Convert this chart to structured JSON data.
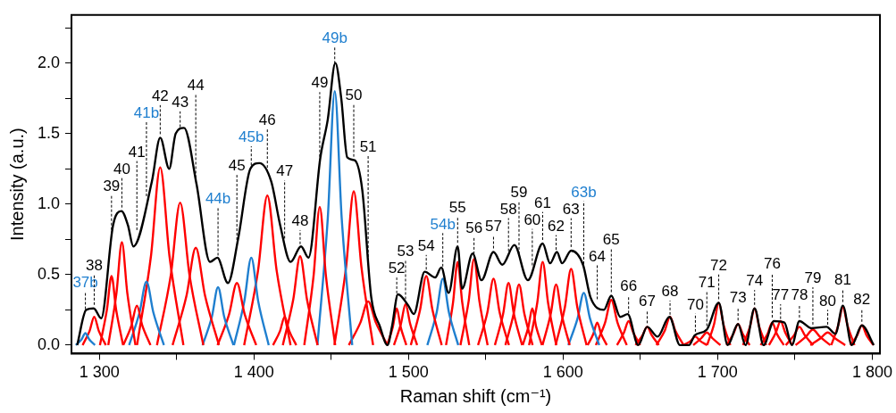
{
  "chart_data": {
    "type": "line",
    "xlabel": "Raman shift (cm⁻¹)",
    "ylabel": "Intensity (a.u.)",
    "marker": "none",
    "xlim": [
      1282,
      1805
    ],
    "ylim": [
      -0.06,
      2.34
    ],
    "xticks": [
      {
        "value": 1300,
        "label": "1 300"
      },
      {
        "value": 1350,
        "label": null
      },
      {
        "value": 1400,
        "label": "1 400"
      },
      {
        "value": 1450,
        "label": null
      },
      {
        "value": 1500,
        "label": "1 500"
      },
      {
        "value": 1550,
        "label": null
      },
      {
        "value": 1600,
        "label": "1 600"
      },
      {
        "value": 1650,
        "label": null
      },
      {
        "value": 1700,
        "label": "1 700"
      },
      {
        "value": 1750,
        "label": null
      },
      {
        "value": 1800,
        "label": "1 800"
      }
    ],
    "yticks": [
      {
        "value": 0,
        "label": "0.0"
      },
      {
        "value": 0.25,
        "label": null
      },
      {
        "value": 0.5,
        "label": "0.5"
      },
      {
        "value": 0.75,
        "label": null
      },
      {
        "value": 1,
        "label": "1.0"
      },
      {
        "value": 1.25,
        "label": null
      },
      {
        "value": 1.5,
        "label": "1.5"
      },
      {
        "value": 1.75,
        "label": null
      },
      {
        "value": 2,
        "label": "2.0"
      },
      {
        "value": 2.25,
        "label": null
      }
    ],
    "annotations": [
      {
        "text": "37b",
        "x": 1291,
        "y": 0.23
      },
      {
        "text": "38",
        "x": 1296.7,
        "y": 0.26
      },
      {
        "text": "39",
        "x": 1307.9,
        "y": 0.76
      },
      {
        "text": "40",
        "x": 1314.6,
        "y": 0.95
      },
      {
        "text": "41",
        "x": 1324.3,
        "y": 0.79
      },
      {
        "text": "41b",
        "x": 1330.5,
        "y": 1.03
      },
      {
        "text": "42",
        "x": 1339.4,
        "y": 1.47
      },
      {
        "text": "43",
        "x": 1352.3,
        "y": 1.52
      },
      {
        "text": "44",
        "x": 1362.4,
        "y": 1.16
      },
      {
        "text": "44b",
        "x": 1376.8,
        "y": 0.61
      },
      {
        "text": "45",
        "x": 1389,
        "y": 0.72
      },
      {
        "text": "45b",
        "x": 1398.3,
        "y": 1.25
      },
      {
        "text": "46",
        "x": 1408.7,
        "y": 1.2
      },
      {
        "text": "47",
        "x": 1419.9,
        "y": 0.73
      },
      {
        "text": "48",
        "x": 1429.9,
        "y": 0.69
      },
      {
        "text": "49",
        "x": 1442.6,
        "y": 1.31
      },
      {
        "text": "49b",
        "x": 1452.3,
        "y": 1.97
      },
      {
        "text": "50",
        "x": 1464.6,
        "y": 1.31
      },
      {
        "text": "51",
        "x": 1473.9,
        "y": 0.6
      },
      {
        "text": "52",
        "x": 1492.4,
        "y": 0.31
      },
      {
        "text": "53",
        "x": 1498.1,
        "y": 0.3
      },
      {
        "text": "54",
        "x": 1511.5,
        "y": 0.51
      },
      {
        "text": "54b",
        "x": 1522.2,
        "y": 0.5
      },
      {
        "text": "55",
        "x": 1531.8,
        "y": 0.7
      },
      {
        "text": "56",
        "x": 1542.4,
        "y": 0.62
      },
      {
        "text": "57",
        "x": 1555,
        "y": 0.66
      },
      {
        "text": "58",
        "x": 1564.7,
        "y": 0.64
      },
      {
        "text": "59",
        "x": 1571.5,
        "y": 0.62
      },
      {
        "text": "60",
        "x": 1580.1,
        "y": 0.54
      },
      {
        "text": "61",
        "x": 1586.8,
        "y": 0.72
      },
      {
        "text": "62",
        "x": 1595.5,
        "y": 0.65
      },
      {
        "text": "63",
        "x": 1605.2,
        "y": 0.67
      },
      {
        "text": "63b",
        "x": 1613.4,
        "y": 0.55
      },
      {
        "text": "64",
        "x": 1622.1,
        "y": 0.3
      },
      {
        "text": "65",
        "x": 1631.2,
        "y": 0.35
      },
      {
        "text": "66",
        "x": 1642.4,
        "y": 0.2
      },
      {
        "text": "67",
        "x": 1654.4,
        "y": 0.13
      },
      {
        "text": "68",
        "x": 1669.2,
        "y": 0.19
      },
      {
        "text": "70",
        "x": 1685.6,
        "y": 0.07
      },
      {
        "text": "71",
        "x": 1693,
        "y": 0.11
      },
      {
        "text": "72",
        "x": 1700.7,
        "y": 0.3
      },
      {
        "text": "73",
        "x": 1713.2,
        "y": 0.15
      },
      {
        "text": "74",
        "x": 1723.9,
        "y": 0.26
      },
      {
        "text": "76",
        "x": 1735.3,
        "y": 0.17
      },
      {
        "text": "77",
        "x": 1740.7,
        "y": 0.16
      },
      {
        "text": "78",
        "x": 1752.9,
        "y": 0.17
      },
      {
        "text": "79",
        "x": 1761.6,
        "y": 0.12
      },
      {
        "text": "80",
        "x": 1771.2,
        "y": 0.12
      },
      {
        "text": "81",
        "x": 1781,
        "y": 0.28
      },
      {
        "text": "82",
        "x": 1793.3,
        "y": 0.14
      }
    ],
    "series": [
      {
        "color": "#000000",
        "x": [
          1285.7,
          1291.5,
          1296.4,
          1301.2,
          1308.9,
          1314.3,
          1318.5,
          1322,
          1334,
          1339.4,
          1345.2,
          1349.4,
          1354.8,
          1362.9,
          1371.6,
          1376.4,
          1383.2,
          1389.9,
          1397.7,
          1403.5,
          1411.2,
          1417,
          1423.7,
          1430.5,
          1435.3,
          1443,
          1447.8,
          1452.7,
          1456.5,
          1460.4,
          1465.2,
          1470.1,
          1475.9,
          1481.6,
          1486.4,
          1489.3,
          1493.2,
          1499.9,
          1503.4,
          1510.5,
          1517.3,
          1521.2,
          1526,
          1531.8,
          1534.7,
          1541.5,
          1547.2,
          1555,
          1560.7,
          1568.5,
          1577.2,
          1586.8,
          1591.6,
          1596,
          1599.4,
          1605.2,
          1612.9,
          1617.7,
          1626.4,
          1631.2,
          1637,
          1641.8,
          1648.6,
          1654.4,
          1661.1,
          1668.8,
          1675.6,
          1681.4,
          1685.2,
          1693,
          1700.7,
          1706.5,
          1713.2,
          1718,
          1723.9,
          1729.7,
          1736.4,
          1743.2,
          1748,
          1752.9,
          1760.6,
          1770.4,
          1776.2,
          1781,
          1786.8,
          1793.3,
          1801
        ],
        "values": [
          0,
          0.25,
          0.26,
          0.19,
          0.85,
          0.95,
          0.85,
          0.7,
          1.16,
          1.47,
          1.25,
          1.5,
          1.54,
          1.14,
          0.59,
          0.62,
          0.44,
          0.76,
          1.25,
          1.29,
          1.16,
          0.85,
          0.59,
          0.7,
          0.62,
          1.33,
          1.6,
          2.0,
          1.75,
          1.33,
          1.31,
          1.1,
          0.34,
          0.13,
          0,
          0.13,
          0.36,
          0.28,
          0.22,
          0.52,
          0.48,
          0.55,
          0.37,
          0.7,
          0.4,
          0.65,
          0.46,
          0.66,
          0.57,
          0.71,
          0.46,
          0.72,
          0.58,
          0.66,
          0.58,
          0.67,
          0.57,
          0.34,
          0.25,
          0.35,
          0.2,
          0.22,
          0,
          0.13,
          0.06,
          0.2,
          0,
          0,
          0.07,
          0.11,
          0.3,
          0,
          0.15,
          0,
          0.26,
          0,
          0.17,
          0.16,
          0,
          0.17,
          0.12,
          0.13,
          0.08,
          0.28,
          0,
          0.14,
          0
        ]
      },
      {
        "color": "#1f7fcf",
        "x": [
          1284.8,
          1288.5,
          1291,
          1293.5,
          1297.2
        ],
        "values": [
          0,
          0.04,
          0.085,
          0.04,
          0
        ]
      },
      {
        "color": "#ff0000",
        "x": [
          1289.2,
          1293.7,
          1296.7,
          1299.7,
          1304.2
        ],
        "values": [
          0,
          0.1,
          0.2,
          0.1,
          0
        ]
      },
      {
        "color": "#ff0000",
        "x": [
          1300.4,
          1304.9,
          1307.9,
          1310.9,
          1315.4
        ],
        "values": [
          0,
          0.25,
          0.49,
          0.25,
          0
        ]
      },
      {
        "color": "#ff0000",
        "x": [
          1305.8,
          1311.1,
          1314.6,
          1318.1,
          1323.4
        ],
        "values": [
          0,
          0.37,
          0.73,
          0.37,
          0
        ]
      },
      {
        "color": "#ff0000",
        "x": [
          1315.5,
          1320.8,
          1324.3,
          1327.8,
          1333.1
        ],
        "values": [
          0,
          0.14,
          0.28,
          0.14,
          0
        ]
      },
      {
        "color": "#1f7fcf",
        "x": [
          1319.3,
          1326,
          1330.5,
          1335,
          1341.8
        ],
        "values": [
          0,
          0.23,
          0.45,
          0.23,
          0
        ]
      },
      {
        "color": "#ff0000",
        "x": [
          1324.4,
          1333.4,
          1339.4,
          1345.4,
          1354.4
        ],
        "values": [
          0,
          0.63,
          1.26,
          0.63,
          0
        ]
      },
      {
        "color": "#ff0000",
        "x": [
          1337.3,
          1346.3,
          1352.3,
          1358.3,
          1367.3
        ],
        "values": [
          0,
          0.5,
          1.01,
          0.5,
          0
        ]
      },
      {
        "color": "#ff0000",
        "x": [
          1347.4,
          1356.4,
          1362.4,
          1368.4,
          1377.4
        ],
        "values": [
          0,
          0.35,
          0.69,
          0.35,
          0
        ]
      },
      {
        "color": "#1f7fcf",
        "x": [
          1366.8,
          1372.8,
          1376.8,
          1380.8,
          1386.8
        ],
        "values": [
          0,
          0.2,
          0.41,
          0.2,
          0
        ]
      },
      {
        "color": "#ff0000",
        "x": [
          1376.5,
          1384,
          1389,
          1394,
          1401.5
        ],
        "values": [
          0,
          0.22,
          0.44,
          0.22,
          0
        ]
      },
      {
        "color": "#1f7fcf",
        "x": [
          1387.1,
          1393.8,
          1398.3,
          1402.8,
          1409.6
        ],
        "values": [
          0,
          0.31,
          0.62,
          0.31,
          0
        ]
      },
      {
        "color": "#ff0000",
        "x": [
          1393.7,
          1402.7,
          1408.7,
          1414.7,
          1423.7
        ],
        "values": [
          0,
          0.53,
          1.06,
          0.53,
          0
        ]
      },
      {
        "color": "#ff0000",
        "x": [
          1412.4,
          1416.9,
          1419.9,
          1422.9,
          1427.4
        ],
        "values": [
          0,
          0.1,
          0.2,
          0.1,
          0
        ]
      },
      {
        "color": "#ff0000",
        "x": [
          1418.7,
          1425.4,
          1429.9,
          1434.4,
          1441.2
        ],
        "values": [
          0,
          0.32,
          0.63,
          0.32,
          0
        ]
      },
      {
        "color": "#ff0000",
        "x": [
          1432.6,
          1438.6,
          1442.6,
          1446.6,
          1452.6
        ],
        "values": [
          0,
          0.49,
          0.98,
          0.49,
          0
        ]
      },
      {
        "color": "#1f7fcf",
        "x": [
          1441.1,
          1447.8,
          1452.3,
          1456.8,
          1463.6
        ],
        "values": [
          0,
          0.9,
          1.8,
          0.9,
          0
        ]
      },
      {
        "color": "#ff0000",
        "x": [
          1452.1,
          1459.6,
          1464.6,
          1469.6,
          1477.1
        ],
        "values": [
          0,
          0.55,
          1.09,
          0.55,
          0
        ]
      },
      {
        "color": "#ff0000",
        "x": [
          1461.4,
          1468.9,
          1473.9,
          1478.9,
          1486.4
        ],
        "values": [
          0,
          0.16,
          0.31,
          0.16,
          0
        ]
      },
      {
        "color": "#ff0000",
        "x": [
          1486.2,
          1489.9,
          1492.4,
          1494.9,
          1498.6
        ],
        "values": [
          0,
          0.13,
          0.26,
          0.13,
          0
        ]
      },
      {
        "color": "#ff0000",
        "x": [
          1490.6,
          1495.1,
          1498.1,
          1501.1,
          1505.6
        ],
        "values": [
          0,
          0.15,
          0.29,
          0.15,
          0
        ]
      },
      {
        "color": "#ff0000",
        "x": [
          1501.5,
          1507.5,
          1511.5,
          1515.5,
          1521.5
        ],
        "values": [
          0,
          0.25,
          0.49,
          0.25,
          0
        ]
      },
      {
        "color": "#1f7fcf",
        "x": [
          1512.2,
          1518.2,
          1522.2,
          1526.2,
          1532.2
        ],
        "values": [
          0,
          0.23,
          0.47,
          0.23,
          0
        ]
      },
      {
        "color": "#ff0000",
        "x": [
          1524.3,
          1528.8,
          1531.8,
          1534.8,
          1539.3
        ],
        "values": [
          0,
          0.3,
          0.59,
          0.3,
          0
        ]
      },
      {
        "color": "#ff0000",
        "x": [
          1533.6,
          1538.9,
          1542.4,
          1545.9,
          1551.2
        ],
        "values": [
          0,
          0.31,
          0.61,
          0.31,
          0
        ]
      },
      {
        "color": "#ff0000",
        "x": [
          1545,
          1551,
          1555,
          1559,
          1565
        ],
        "values": [
          0,
          0.23,
          0.47,
          0.23,
          0
        ]
      },
      {
        "color": "#ff0000",
        "x": [
          1555.9,
          1561.2,
          1564.7,
          1568.2,
          1573.5
        ],
        "values": [
          0,
          0.22,
          0.44,
          0.22,
          0
        ]
      },
      {
        "color": "#ff0000",
        "x": [
          1562.7,
          1568,
          1571.5,
          1575,
          1580.3
        ],
        "values": [
          0,
          0.22,
          0.43,
          0.22,
          0
        ]
      },
      {
        "color": "#ff0000",
        "x": [
          1573.9,
          1577.6,
          1580.1,
          1582.6,
          1586.3
        ],
        "values": [
          0,
          0.13,
          0.26,
          0.13,
          0
        ]
      },
      {
        "color": "#ff0000",
        "x": [
          1578,
          1583.3,
          1586.8,
          1590.3,
          1595.6
        ],
        "values": [
          0,
          0.3,
          0.59,
          0.3,
          0
        ]
      },
      {
        "color": "#ff0000",
        "x": [
          1586.7,
          1592,
          1595.5,
          1599,
          1604.3
        ],
        "values": [
          0,
          0.22,
          0.43,
          0.22,
          0
        ]
      },
      {
        "color": "#ff0000",
        "x": [
          1595.2,
          1601.2,
          1605.2,
          1609.2,
          1615.2
        ],
        "values": [
          0,
          0.27,
          0.54,
          0.27,
          0
        ]
      },
      {
        "color": "#1f7fcf",
        "x": [
          1603.4,
          1609.4,
          1613.4,
          1617.4,
          1623.4
        ],
        "values": [
          0,
          0.19,
          0.37,
          0.19,
          0
        ]
      },
      {
        "color": "#ff0000",
        "x": [
          1615.9,
          1619.6,
          1622.1,
          1624.6,
          1628.3
        ],
        "values": [
          0,
          0.08,
          0.16,
          0.08,
          0
        ]
      },
      {
        "color": "#ff0000",
        "x": [
          1621.2,
          1627.2,
          1631.2,
          1635.2,
          1641.2
        ],
        "values": [
          0,
          0.16,
          0.32,
          0.16,
          0
        ]
      },
      {
        "color": "#ff0000",
        "x": [
          1634.9,
          1639.4,
          1642.4,
          1645.4,
          1649.9
        ],
        "values": [
          0,
          0.09,
          0.17,
          0.09,
          0
        ]
      },
      {
        "color": "#ff0000",
        "x": [
          1646.9,
          1651.4,
          1654.4,
          1657.4,
          1661.9
        ],
        "values": [
          0,
          0.07,
          0.13,
          0.07,
          0
        ]
      },
      {
        "color": "#ff0000",
        "x": [
          1660.4,
          1665.7,
          1669.2,
          1672.7,
          1678
        ],
        "values": [
          0,
          0.1,
          0.2,
          0.1,
          0
        ]
      },
      {
        "color": "#ff0000",
        "x": [
          1678.1,
          1682.6,
          1685.6,
          1688.6,
          1693.1
        ],
        "values": [
          0,
          0.03,
          0.06,
          0.03,
          0
        ]
      },
      {
        "color": "#ff0000",
        "x": [
          1684.2,
          1689.5,
          1693,
          1696.5,
          1701.8
        ],
        "values": [
          0,
          0.05,
          0.09,
          0.05,
          0
        ]
      },
      {
        "color": "#ff0000",
        "x": [
          1693.2,
          1697.7,
          1700.7,
          1703.7,
          1708.2
        ],
        "values": [
          0,
          0.15,
          0.3,
          0.15,
          0
        ]
      },
      {
        "color": "#ff0000",
        "x": [
          1705.7,
          1710.2,
          1713.2,
          1716.2,
          1720.7
        ],
        "values": [
          0,
          0.08,
          0.15,
          0.08,
          0
        ]
      },
      {
        "color": "#ff0000",
        "x": [
          1716.4,
          1720.9,
          1723.9,
          1726.9,
          1731.4
        ],
        "values": [
          0,
          0.13,
          0.26,
          0.13,
          0
        ]
      },
      {
        "color": "#ff0000",
        "x": [
          1727.8,
          1732.3,
          1735.3,
          1738.3,
          1742.8
        ],
        "values": [
          0,
          0.08,
          0.16,
          0.08,
          0
        ]
      },
      {
        "color": "#ff0000",
        "x": [
          1733.2,
          1737.7,
          1740.7,
          1743.7,
          1748.2
        ],
        "values": [
          0,
          0.09,
          0.17,
          0.09,
          0
        ]
      },
      {
        "color": "#ff0000",
        "x": [
          1744.1,
          1749.4,
          1752.9,
          1756.4,
          1761.7
        ],
        "values": [
          0,
          0.07,
          0.13,
          0.07,
          0
        ]
      },
      {
        "color": "#ff0000",
        "x": [
          1750.4,
          1757.1,
          1761.6,
          1766.1,
          1772.9
        ],
        "values": [
          0,
          0.06,
          0.11,
          0.06,
          0
        ]
      },
      {
        "color": "#ff0000",
        "x": [
          1760,
          1766.7,
          1771.2,
          1775.7,
          1782.5
        ],
        "values": [
          0,
          0.05,
          0.09,
          0.05,
          0
        ]
      },
      {
        "color": "#ff0000",
        "x": [
          1773.5,
          1778,
          1781,
          1784,
          1788.5
        ],
        "values": [
          0,
          0.14,
          0.27,
          0.14,
          0
        ]
      },
      {
        "color": "#ff0000",
        "x": [
          1785.8,
          1790.3,
          1793.3,
          1796.3,
          1800.8
        ],
        "values": [
          0,
          0.07,
          0.14,
          0.07,
          0
        ]
      }
    ]
  }
}
